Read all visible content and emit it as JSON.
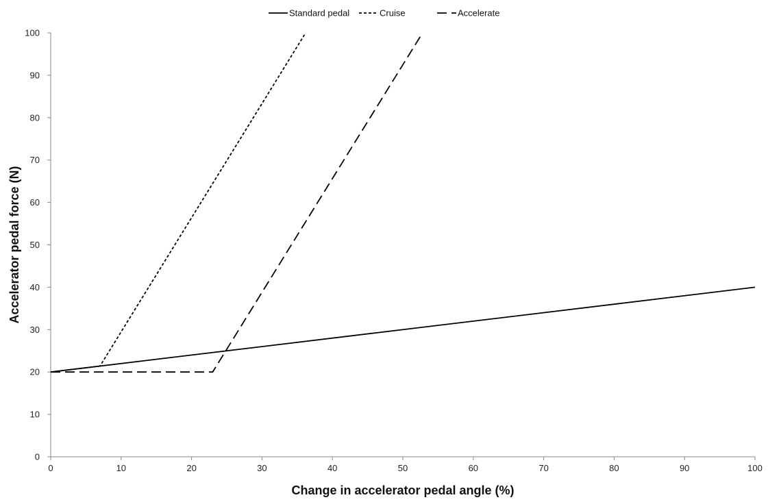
{
  "chart_data": {
    "type": "line",
    "title": "",
    "xlabel": "Change in accelerator pedal angle (%)",
    "ylabel": "Accelerator pedal force (N)",
    "xlim": [
      0,
      100
    ],
    "ylim": [
      0,
      100
    ],
    "xticks": [
      0,
      10,
      20,
      30,
      40,
      50,
      60,
      70,
      80,
      90,
      100
    ],
    "yticks": [
      0,
      10,
      20,
      30,
      40,
      50,
      60,
      70,
      80,
      90,
      100
    ],
    "grid": false,
    "legend_position": "top-center",
    "series": [
      {
        "name": "Standard pedal",
        "style": "solid",
        "color": "#000000",
        "points": [
          [
            0,
            20
          ],
          [
            100,
            40
          ]
        ]
      },
      {
        "name": "Cruise",
        "style": "short-dash",
        "color": "#000000",
        "points": [
          [
            0,
            20
          ],
          [
            7,
            21.4
          ],
          [
            36.2,
            100
          ]
        ]
      },
      {
        "name": "Accelerate",
        "style": "long-dash",
        "color": "#000000",
        "points": [
          [
            0,
            20
          ],
          [
            23,
            20
          ],
          [
            52.8,
            100
          ]
        ]
      }
    ]
  }
}
